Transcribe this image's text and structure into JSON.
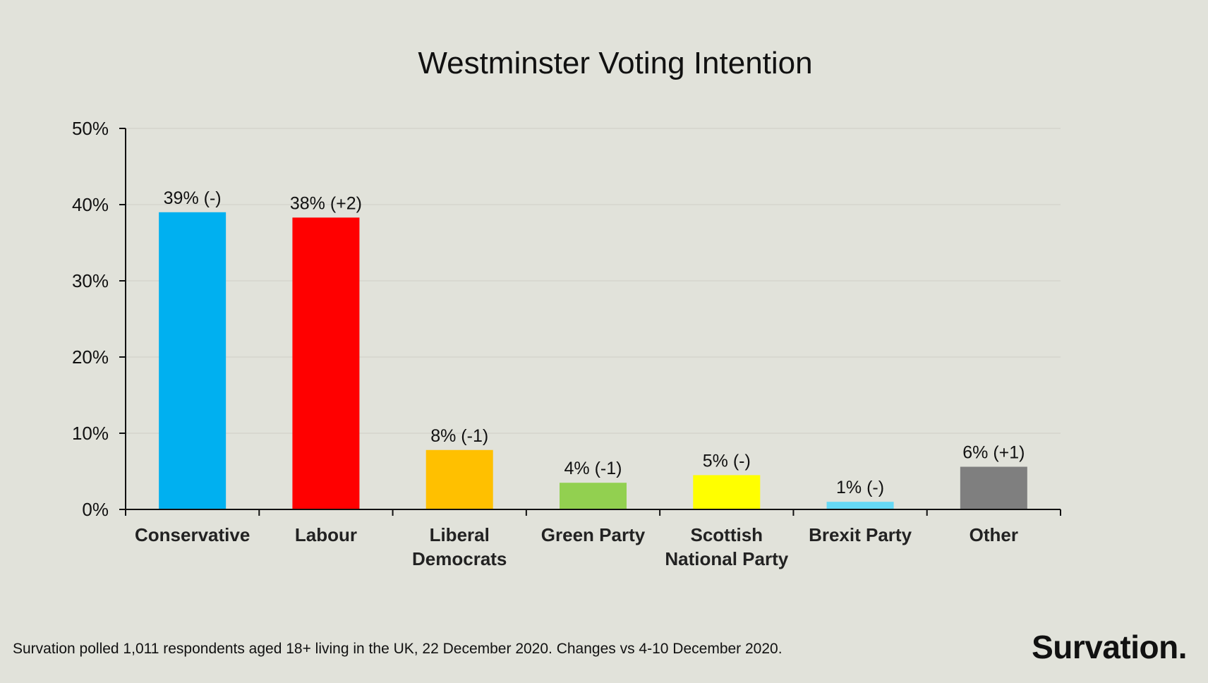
{
  "chart_data": {
    "type": "bar",
    "title": "Westminster Voting Intention",
    "categories": [
      "Conservative",
      "Labour",
      "Liberal Democrats",
      "Green Party",
      "Scottish National Party",
      "Brexit Party",
      "Other"
    ],
    "category_lines": [
      [
        "Conservative"
      ],
      [
        "Labour"
      ],
      [
        "Liberal",
        "Democrats"
      ],
      [
        "Green Party"
      ],
      [
        "Scottish",
        "National Party"
      ],
      [
        "Brexit Party"
      ],
      [
        "Other"
      ]
    ],
    "values": [
      39,
      38.3,
      7.8,
      3.5,
      4.5,
      1,
      5.6
    ],
    "data_labels": [
      "39% (-)",
      "38% (+2)",
      "8% (-1)",
      "4% (-1)",
      "5% (-)",
      "1% (-)",
      "6% (+1)"
    ],
    "colors": [
      "#00b0f0",
      "#ff0000",
      "#ffc000",
      "#92d050",
      "#ffff00",
      "#66d9f5",
      "#7f7f7f"
    ],
    "ylim": [
      0,
      50
    ],
    "yticks": [
      0,
      10,
      20,
      30,
      40,
      50
    ],
    "ytick_labels": [
      "0%",
      "10%",
      "20%",
      "30%",
      "40%",
      "50%"
    ],
    "xlabel": "",
    "ylabel": "",
    "grid": true,
    "legend": "none"
  },
  "footnote": "Survation polled 1,011 respondents aged 18+ living in the UK, 22 December 2020. Changes vs 4-10 December 2020.",
  "brand": "Survation."
}
